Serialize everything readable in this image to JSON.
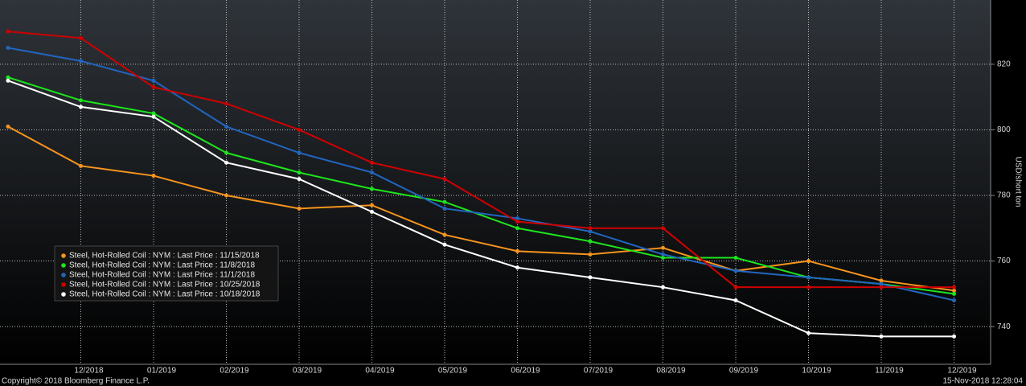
{
  "chart_data": {
    "type": "line",
    "y_label": "USD/short ton",
    "copyright": "Copyright© 2018 Bloomberg Finance L.P.",
    "timestamp": "15-Nov-2018 12:28:04",
    "categories": [
      null,
      "12/2018",
      "01/2019",
      "02/2019",
      "03/2019",
      "04/2019",
      "05/2019",
      "06/2019",
      "07/2019",
      "08/2019",
      "09/2019",
      "10/2019",
      "11/2019",
      "12/2019"
    ],
    "series": [
      {
        "name": "Steel, Hot-Rolled Coil : NYM : Last Price : 11/15/2018",
        "color": "#f7941d",
        "values": [
          801,
          789,
          786,
          780,
          776,
          777,
          768,
          763,
          762,
          764,
          757,
          760,
          754,
          751
        ]
      },
      {
        "name": "Steel, Hot-Rolled Coil : NYM : Last Price : 11/8/2018",
        "color": "#1de51d",
        "values": [
          816,
          809,
          805,
          793,
          787,
          782,
          778,
          770,
          766,
          761,
          761,
          755,
          753,
          750
        ]
      },
      {
        "name": "Steel, Hot-Rolled Coil : NYM : Last Price : 11/1/2018",
        "color": "#2166c0",
        "values": [
          825,
          821,
          815,
          801,
          793,
          787,
          776,
          773,
          769,
          762,
          757,
          755,
          753,
          748
        ]
      },
      {
        "name": "Steel, Hot-Rolled Coil : NYM : Last Price : 10/25/2018",
        "color": "#d00000",
        "values": [
          830,
          828,
          813,
          808,
          800,
          790,
          785,
          772,
          770,
          770,
          752,
          752,
          752,
          752
        ]
      },
      {
        "name": "Steel, Hot-Rolled Coil : NYM : Last Price : 10/18/2018",
        "color": "#ffffff",
        "values": [
          815,
          807,
          804,
          790,
          785,
          775,
          765,
          758,
          755,
          752,
          748,
          738,
          737,
          737
        ]
      }
    ],
    "ylim": [
      728.5,
      839.6
    ],
    "yticks": [
      740,
      760,
      780,
      800,
      820
    ],
    "grid": true,
    "legend": "lower-left"
  }
}
